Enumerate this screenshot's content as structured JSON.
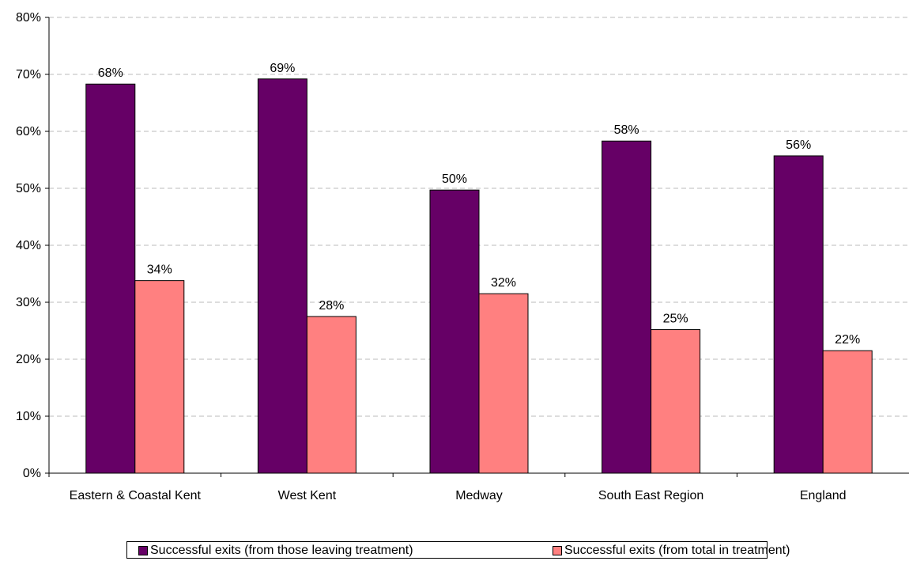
{
  "chart_data": {
    "type": "bar",
    "categories": [
      "Eastern & Coastal Kent",
      "West Kent",
      "Medway",
      "South East Region",
      "England"
    ],
    "series": [
      {
        "name": "Successful exits (from those leaving treatment)",
        "values": [
          68.3,
          69.2,
          49.7,
          58.3,
          55.7
        ],
        "labels": [
          "68%",
          "69%",
          "50%",
          "58%",
          "56%"
        ],
        "color": "#660066"
      },
      {
        "name": "Successful exits (from total in treatment)",
        "values": [
          33.8,
          27.5,
          31.5,
          25.2,
          21.5
        ],
        "labels": [
          "34%",
          "28%",
          "32%",
          "25%",
          "22%"
        ],
        "color": "#ff8080"
      }
    ],
    "ylim": [
      0,
      80
    ],
    "ytick_labels": [
      "0%",
      "10%",
      "20%",
      "30%",
      "40%",
      "50%",
      "60%",
      "70%",
      "80%"
    ],
    "grid": true,
    "legend_position": "bottom"
  }
}
